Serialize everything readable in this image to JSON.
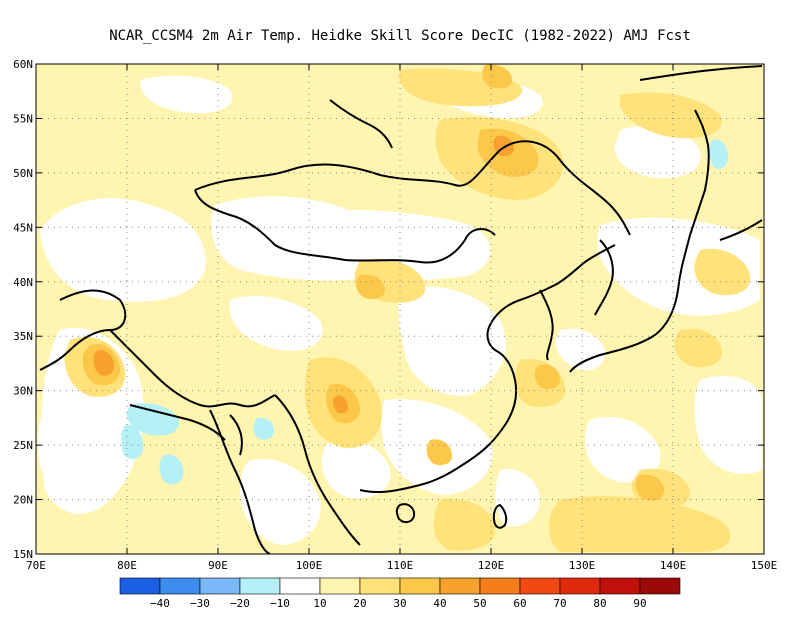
{
  "title": "NCAR_CCSM4  2m Air Temp. Heidke Skill Score DecIC (1982-2022) AMJ Fcst",
  "map": {
    "lon_range": [
      70,
      150
    ],
    "lat_range": [
      15,
      60
    ],
    "x_ticks": [
      "70E",
      "80E",
      "90E",
      "100E",
      "110E",
      "120E",
      "130E",
      "140E",
      "150E"
    ],
    "y_ticks": [
      "15N",
      "20N",
      "25N",
      "30N",
      "35N",
      "40N",
      "45N",
      "50N",
      "55N",
      "60N"
    ],
    "grid": "dotted",
    "colors": {
      "c10": "#ffffff",
      "c20": "#fff4b0",
      "c30": "#ffe27a",
      "c40": "#fcc84a",
      "c50": "#f7a22e",
      "neg10": "#b5f0f6"
    }
  },
  "colorbar": {
    "colors": [
      "#1c5fe3",
      "#3d8cf0",
      "#79b7f6",
      "#b5f0f6",
      "#ffffff",
      "#fff4b0",
      "#ffe27a",
      "#fcc84a",
      "#f7a22e",
      "#f47e1b",
      "#f04a12",
      "#e02a0c",
      "#c0100a",
      "#9a0a06"
    ],
    "labels": [
      "−40",
      "−30",
      "−20",
      "−10",
      "10",
      "20",
      "30",
      "40",
      "50",
      "60",
      "70",
      "80",
      "90"
    ]
  }
}
